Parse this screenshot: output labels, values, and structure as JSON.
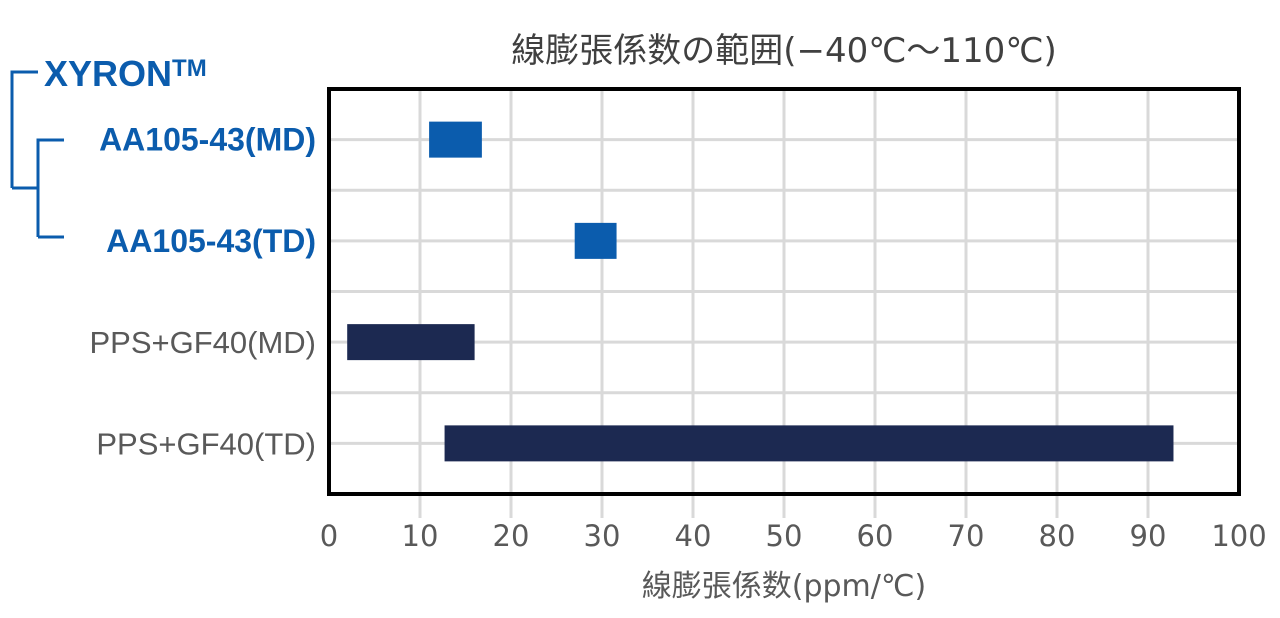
{
  "chart_data": {
    "type": "bar",
    "orientation": "horizontal-range",
    "title": "線膨張係数の範囲(−40℃〜110℃)",
    "xlabel": "線膨張係数(ppm/℃)",
    "ylabel": "",
    "xlim": [
      0,
      100
    ],
    "xticks": [
      "0",
      "10",
      "20",
      "30",
      "40",
      "50",
      "60",
      "70",
      "80",
      "90",
      "100"
    ],
    "grid": true,
    "group_label": "XYRON",
    "group_label_tm": "TM",
    "categories": [
      "AA105-43(MD)",
      "AA105-43(TD)",
      "PPS+GF40(MD)",
      "PPS+GF40(TD)"
    ],
    "ranges": [
      {
        "min": 11,
        "max": 16.8
      },
      {
        "min": 27,
        "max": 31.6
      },
      {
        "min": 2,
        "max": 16
      },
      {
        "min": 12.7,
        "max": 92.8
      }
    ],
    "bar_colors": [
      "#0b5cad",
      "#0b5cad",
      "#1c2951",
      "#1c2951"
    ],
    "label_styles": [
      "xyron",
      "xyron",
      "other",
      "other"
    ]
  },
  "colors": {
    "xyron": "#0b5cad",
    "competitor": "#1c2951",
    "grid": "#d9d9d9",
    "frame": "#000000"
  }
}
